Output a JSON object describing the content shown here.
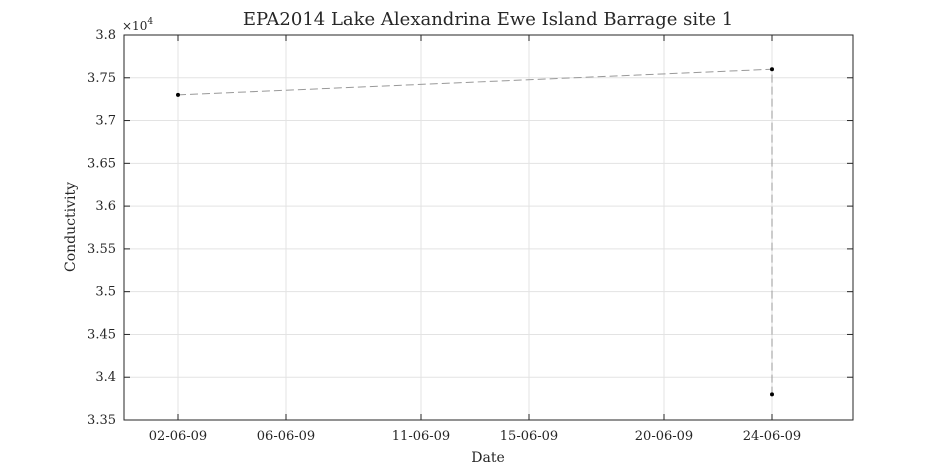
{
  "chart_data": {
    "type": "line",
    "title": "EPA2014 Lake Alexandrina Ewe Island Barrage site 1",
    "xlabel": "Date",
    "ylabel": "Conductivity",
    "y_exponent_label": "×10",
    "y_exponent": "4",
    "ylim": [
      33500,
      38000
    ],
    "yticks": [
      33500,
      34000,
      34500,
      35000,
      35500,
      36000,
      36500,
      37000,
      37500,
      38000
    ],
    "ytick_labels": [
      "3.35",
      "3.4",
      "3.45",
      "3.5",
      "3.55",
      "3.6",
      "3.65",
      "3.7",
      "3.75",
      "3.8"
    ],
    "xlim": [
      "2009-05-31",
      "2009-06-27"
    ],
    "xticks": [
      "2009-06-02",
      "2009-06-06",
      "2009-06-11",
      "2009-06-15",
      "2009-06-20",
      "2009-06-24"
    ],
    "xtick_labels": [
      "02-06-09",
      "06-06-09",
      "11-06-09",
      "15-06-09",
      "20-06-09",
      "24-06-09"
    ],
    "grid": true,
    "series": [
      {
        "line_style": "dashed",
        "line_color": "#999999",
        "marker_color": "#000000",
        "points": [
          {
            "x": "2009-06-02",
            "y": 37300
          },
          {
            "x": "2009-06-24",
            "y": 37600
          },
          {
            "x": "2009-06-24",
            "y": 33800
          }
        ]
      }
    ]
  }
}
